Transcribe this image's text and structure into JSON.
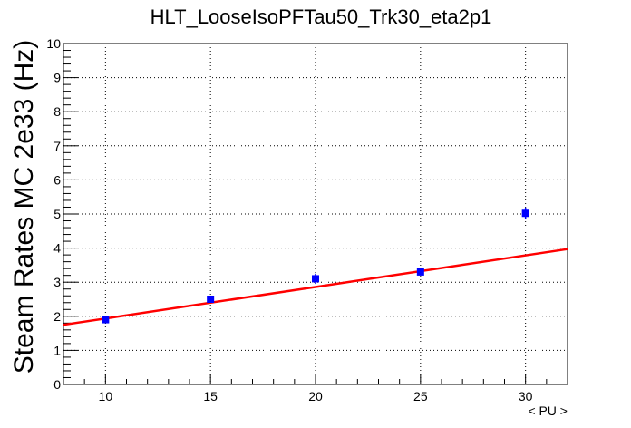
{
  "chart_data": {
    "type": "scatter",
    "title": "HLT_LooseIsoPFTau50_Trk30_eta2p1",
    "xlabel": "< PU >",
    "ylabel": "Steam Rates MC 2e33 (Hz)",
    "xlim": [
      8,
      32
    ],
    "ylim": [
      0,
      10
    ],
    "xticks": [
      10,
      15,
      20,
      25,
      30
    ],
    "yticks": [
      0,
      1,
      2,
      3,
      4,
      5,
      6,
      7,
      8,
      9,
      10
    ],
    "grid": true,
    "series": [
      {
        "type": "scatter",
        "color": "#0000ff",
        "x": [
          10,
          15,
          20,
          25,
          30
        ],
        "y": [
          1.9,
          2.5,
          3.1,
          3.3,
          5.02
        ],
        "yerr": [
          0.07,
          0.08,
          0.15,
          0.09,
          0.17
        ]
      },
      {
        "type": "line",
        "color": "#ff0000",
        "x": [
          8,
          32
        ],
        "y": [
          1.75,
          3.97
        ]
      }
    ]
  }
}
